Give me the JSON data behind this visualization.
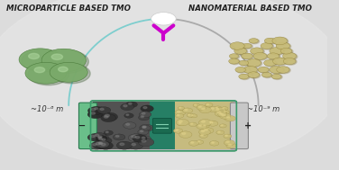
{
  "bg_color": "#dcdcdc",
  "title_left": "MICROPARTICLE BASED TMO",
  "title_right": "NANOMATERIAL BASED TMO",
  "label_left": "~10⁻⁶ m",
  "label_right": "~10⁻⁹ m",
  "title_fontsize": 6.2,
  "label_fontsize": 6.0,
  "arc_left_color": "#7ecece",
  "arc_right_color": "#aaaaaa",
  "arc_linewidth": 1.3,
  "dot_top_color": "#ffffff",
  "funnel_color": "#cc00cc",
  "battery_green": "#3a9a6a",
  "battery_green_dark": "#2a7a50",
  "battery_cap_green": "#6abf8a",
  "battery_cap_gray": "#c0c0c0",
  "anode_color": "#444444",
  "cathode_color": "#c8bc78",
  "separator_color": "#1a7a5e",
  "micro_particle_color": "#7aaa6a",
  "micro_particle_dark": "#4a7a3a",
  "nano_particle_color": "#c8bc78",
  "nano_particle_dark": "#8a7a30"
}
